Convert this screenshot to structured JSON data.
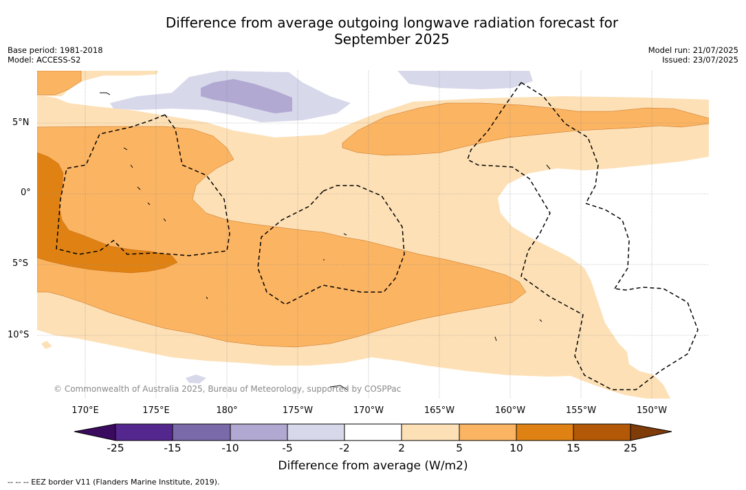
{
  "title_line1": "Difference from average outgoing longwave radiation forecast for",
  "title_line2": "September 2025",
  "base_period": "Base period: 1981-2018",
  "model": "Model: ACCESS-S2",
  "model_run": "Model run: 21/07/2025",
  "issued": "Issued: 23/07/2025",
  "credit": "© Commonwealth of Australia 2025, Bureau of Meteorology, supported by COSPPac",
  "lat_labels": [
    "5°N",
    "0°",
    "5°S",
    "10°S"
  ],
  "lon_labels": [
    "170°E",
    "175°E",
    "180°",
    "175°W",
    "170°W",
    "165°W",
    "160°W",
    "155°W",
    "150°W"
  ],
  "colorbar": {
    "ticks": [
      "-25",
      "-15",
      "-10",
      "-5",
      "-2",
      "2",
      "5",
      "10",
      "15",
      "25"
    ],
    "colors": [
      "#3a0a5e",
      "#54278f",
      "#7b6aaa",
      "#b1a9d2",
      "#d7d8ea",
      "#ffffff",
      "#fde0b6",
      "#fbb462",
      "#e08213",
      "#b35806",
      "#7f3b08"
    ],
    "label": "Difference from average (W/m2)"
  },
  "eez_note": "--  --  -- EEZ border V11 (Flanders Marine Institute, 2019)."
}
